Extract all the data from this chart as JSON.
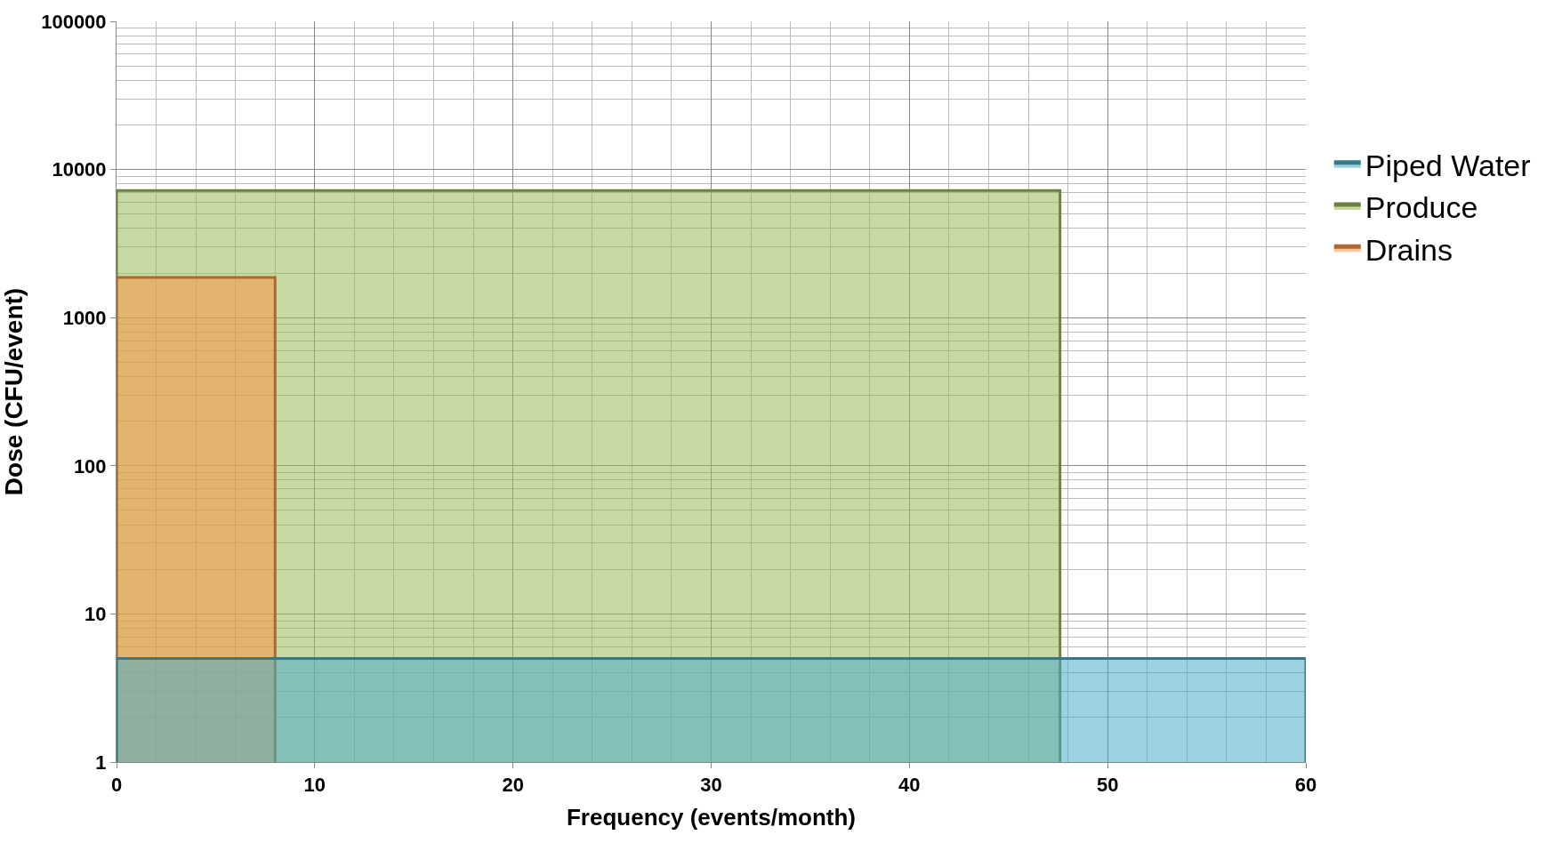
{
  "chart_data": {
    "type": "area",
    "xlabel": "Frequency (events/month)",
    "ylabel": "Dose (CFU/event)",
    "series": [
      {
        "name": "Piped Water",
        "color": "#4bacc6",
        "x": [
          0,
          0,
          60,
          60
        ],
        "values": [
          1,
          5,
          5,
          1
        ]
      },
      {
        "name": "Produce",
        "color": "#9bbb59",
        "x": [
          0,
          0,
          47.6,
          47.6
        ],
        "values": [
          1,
          7200,
          7200,
          1
        ]
      },
      {
        "name": "Drains",
        "color": "#f79646",
        "x": [
          0,
          0,
          8,
          8
        ],
        "values": [
          1,
          1870,
          1870,
          1
        ]
      }
    ],
    "xlim": [
      0,
      60
    ],
    "xticks": [
      0,
      10,
      20,
      30,
      40,
      50,
      60
    ],
    "ylim": [
      1,
      100000
    ],
    "yticks": [
      1,
      10,
      100,
      1000,
      10000,
      100000
    ],
    "log": "y",
    "grid": true,
    "legend": "right"
  }
}
